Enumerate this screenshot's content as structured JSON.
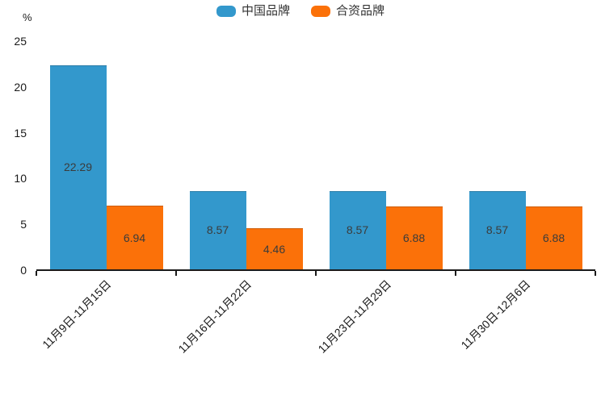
{
  "chart_data": {
    "type": "bar",
    "title": "",
    "unit": "%",
    "categories": [
      "11月9日-11月15日",
      "11月16日-11月22日",
      "11月23日-11月29日",
      "11月30日-12月6日"
    ],
    "series": [
      {
        "name": "中国品牌",
        "color": "#3398cc",
        "values": [
          22.29,
          8.57,
          8.57,
          8.57
        ]
      },
      {
        "name": "合资品牌",
        "color": "#fb7109",
        "values": [
          6.94,
          4.46,
          6.88,
          6.88
        ]
      }
    ],
    "value_labels": [
      "22.29",
      "6.94",
      "8.57",
      "4.46",
      "8.57",
      "6.88",
      "8.57",
      "6.88"
    ],
    "ylim": [
      0,
      25
    ],
    "yticks": [
      0,
      5,
      10,
      15,
      20,
      25
    ],
    "grid": false,
    "legend_position": "top-center",
    "value_label_position": "inside-center",
    "colors": {
      "axis": "#1a1a1a",
      "tick_label": "#1a1a1a",
      "value_label": "#3b3b3b",
      "background": "#ffffff"
    }
  }
}
